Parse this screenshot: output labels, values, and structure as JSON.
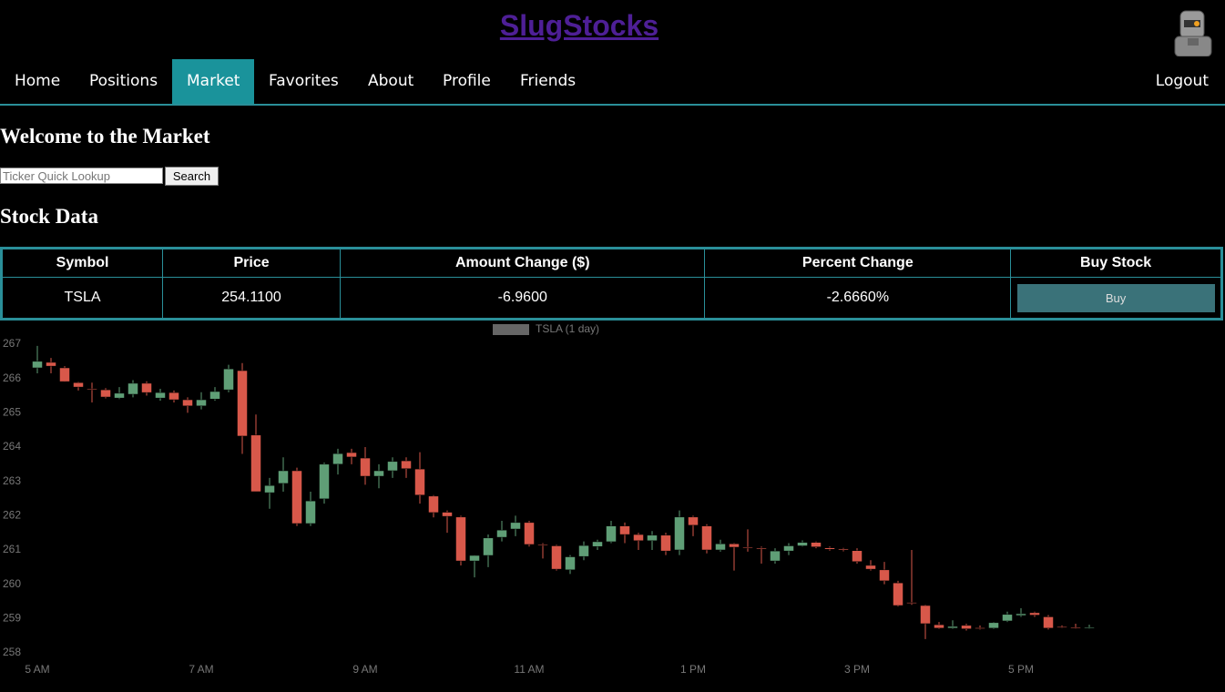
{
  "header": {
    "title": "SlugStocks"
  },
  "nav": {
    "items": [
      "Home",
      "Positions",
      "Market",
      "Favorites",
      "About",
      "Profile",
      "Friends"
    ],
    "active": 2,
    "logout": "Logout"
  },
  "welcome": {
    "heading": "Welcome to the Market",
    "search_placeholder": "Ticker Quick Lookup",
    "search_button": "Search"
  },
  "stock": {
    "heading": "Stock Data",
    "table": {
      "headers": [
        "Symbol",
        "Price",
        "Amount Change ($)",
        "Percent Change",
        "Buy Stock"
      ],
      "rows": [
        [
          "TSLA",
          "254.1100",
          "-6.9600",
          "-2.6660%",
          "Buy"
        ]
      ]
    }
  },
  "chart_data": {
    "type": "candlestick",
    "legend": "TSLA (1 day)",
    "legend_color": "#666666",
    "up_color": "#5f9e76",
    "down_color": "#d8584a",
    "x": [
      300,
      310,
      320,
      330,
      340,
      350,
      360,
      370,
      380,
      390,
      400,
      410,
      420,
      430,
      440,
      450,
      460,
      470,
      480,
      490,
      500,
      510,
      520,
      530,
      540,
      550,
      560,
      570,
      580,
      590,
      600,
      610,
      620,
      630,
      640,
      650,
      660,
      670,
      680,
      690,
      700,
      710,
      720,
      730,
      740,
      750,
      760,
      770,
      780,
      790,
      800,
      810,
      820,
      830,
      840,
      850,
      860,
      870,
      880,
      890,
      900,
      910,
      920,
      930,
      940,
      950,
      960,
      970,
      980,
      990,
      1000,
      1010,
      1020,
      1030,
      1040,
      1050,
      1060,
      1070
    ],
    "open": [
      266.31,
      266.47,
      266.31,
      265.88,
      265.7,
      265.67,
      265.43,
      265.54,
      265.86,
      265.43,
      265.59,
      265.38,
      265.2,
      265.4,
      265.67,
      266.23,
      264.35,
      262.67,
      262.94,
      263.31,
      261.77,
      262.49,
      263.5,
      263.84,
      263.68,
      263.15,
      263.31,
      263.6,
      263.36,
      262.57,
      262.1,
      261.96,
      260.68,
      260.84,
      261.37,
      261.61,
      261.8,
      261.16,
      261.12,
      260.42,
      260.81,
      261.1,
      261.24,
      261.7,
      261.45,
      261.27,
      261.43,
      261.0,
      261.96,
      261.7,
      261.0,
      261.18,
      261.08,
      261.06,
      260.68,
      260.97,
      261.12,
      261.22,
      261.06,
      261.03,
      260.98,
      260.55,
      260.42,
      260.04,
      259.47,
      259.38,
      258.82,
      258.72,
      258.8,
      258.73,
      258.72,
      258.93,
      259.09,
      259.17,
      259.05,
      258.76,
      258.74,
      258.73
    ],
    "high": [
      266.95,
      266.6,
      266.36,
      265.9,
      265.88,
      265.72,
      265.75,
      265.95,
      265.92,
      265.7,
      265.65,
      265.45,
      265.6,
      265.75,
      266.4,
      266.45,
      264.95,
      263.1,
      263.7,
      263.4,
      262.7,
      263.55,
      263.95,
      263.95,
      264.0,
      263.5,
      263.7,
      263.7,
      263.85,
      262.6,
      262.15,
      262.0,
      260.85,
      261.45,
      261.85,
      262.0,
      261.85,
      261.2,
      261.15,
      260.85,
      261.25,
      261.3,
      261.85,
      261.8,
      261.5,
      261.55,
      261.5,
      262.15,
      262.0,
      261.75,
      261.3,
      261.2,
      261.6,
      261.1,
      261.05,
      261.2,
      261.28,
      261.25,
      261.1,
      261.06,
      261.05,
      260.7,
      260.65,
      260.1,
      261.0,
      259.4,
      258.9,
      258.95,
      258.85,
      258.8,
      258.9,
      259.2,
      259.3,
      259.2,
      259.1,
      258.8,
      258.85,
      258.82
    ],
    "low": [
      266.15,
      266.15,
      265.9,
      265.65,
      265.3,
      265.42,
      265.4,
      265.45,
      265.5,
      265.35,
      265.3,
      265.0,
      265.1,
      265.35,
      265.6,
      263.8,
      262.7,
      262.2,
      262.7,
      261.7,
      261.7,
      262.35,
      263.2,
      263.5,
      262.9,
      262.8,
      263.1,
      263.1,
      262.35,
      261.95,
      261.5,
      260.55,
      260.2,
      260.5,
      261.25,
      261.4,
      261.1,
      260.75,
      260.4,
      260.3,
      260.7,
      261.0,
      261.2,
      261.2,
      261.0,
      261.0,
      260.85,
      260.85,
      261.4,
      260.9,
      260.95,
      260.4,
      260.95,
      260.6,
      260.6,
      260.85,
      261.1,
      261.05,
      260.98,
      260.96,
      260.6,
      260.4,
      260.0,
      259.35,
      259.4,
      258.4,
      258.7,
      258.7,
      258.65,
      258.68,
      258.7,
      258.9,
      259.05,
      259.05,
      258.68,
      258.72,
      258.7,
      258.7
    ],
    "close": [
      266.5,
      266.36,
      265.91,
      265.75,
      265.68,
      265.46,
      265.57,
      265.86,
      265.59,
      265.59,
      265.38,
      265.2,
      265.38,
      265.62,
      266.28,
      264.32,
      262.7,
      262.88,
      263.31,
      261.77,
      262.43,
      263.5,
      263.81,
      263.71,
      263.15,
      263.31,
      263.58,
      263.37,
      262.6,
      262.09,
      261.98,
      260.68,
      260.84,
      261.35,
      261.58,
      261.8,
      261.16,
      261.14,
      260.44,
      260.8,
      261.13,
      261.24,
      261.7,
      261.45,
      261.27,
      261.43,
      260.97,
      261.96,
      261.72,
      261.0,
      261.18,
      261.08,
      261.06,
      261.03,
      260.97,
      261.12,
      261.22,
      261.09,
      261.02,
      261.0,
      260.66,
      260.44,
      260.1,
      259.38,
      259.45,
      258.85,
      258.72,
      258.77,
      258.7,
      258.72,
      258.88,
      259.12,
      259.14,
      259.1,
      258.72,
      258.74,
      258.73,
      258.74
    ],
    "xlim": [
      282,
      1166
    ],
    "xticks": [
      {
        "value": 300,
        "label": "5 AM"
      },
      {
        "value": 420,
        "label": "7 AM"
      },
      {
        "value": 540,
        "label": "9 AM"
      },
      {
        "value": 660,
        "label": "11 AM"
      },
      {
        "value": 780,
        "label": "1 PM"
      },
      {
        "value": 900,
        "label": "3 PM"
      },
      {
        "value": 1020,
        "label": "5 PM"
      }
    ],
    "ylim": [
      257.75,
      267.25
    ],
    "yticks": [
      258,
      259,
      260,
      261,
      262,
      263,
      264,
      265,
      266,
      267
    ],
    "grid": false
  }
}
